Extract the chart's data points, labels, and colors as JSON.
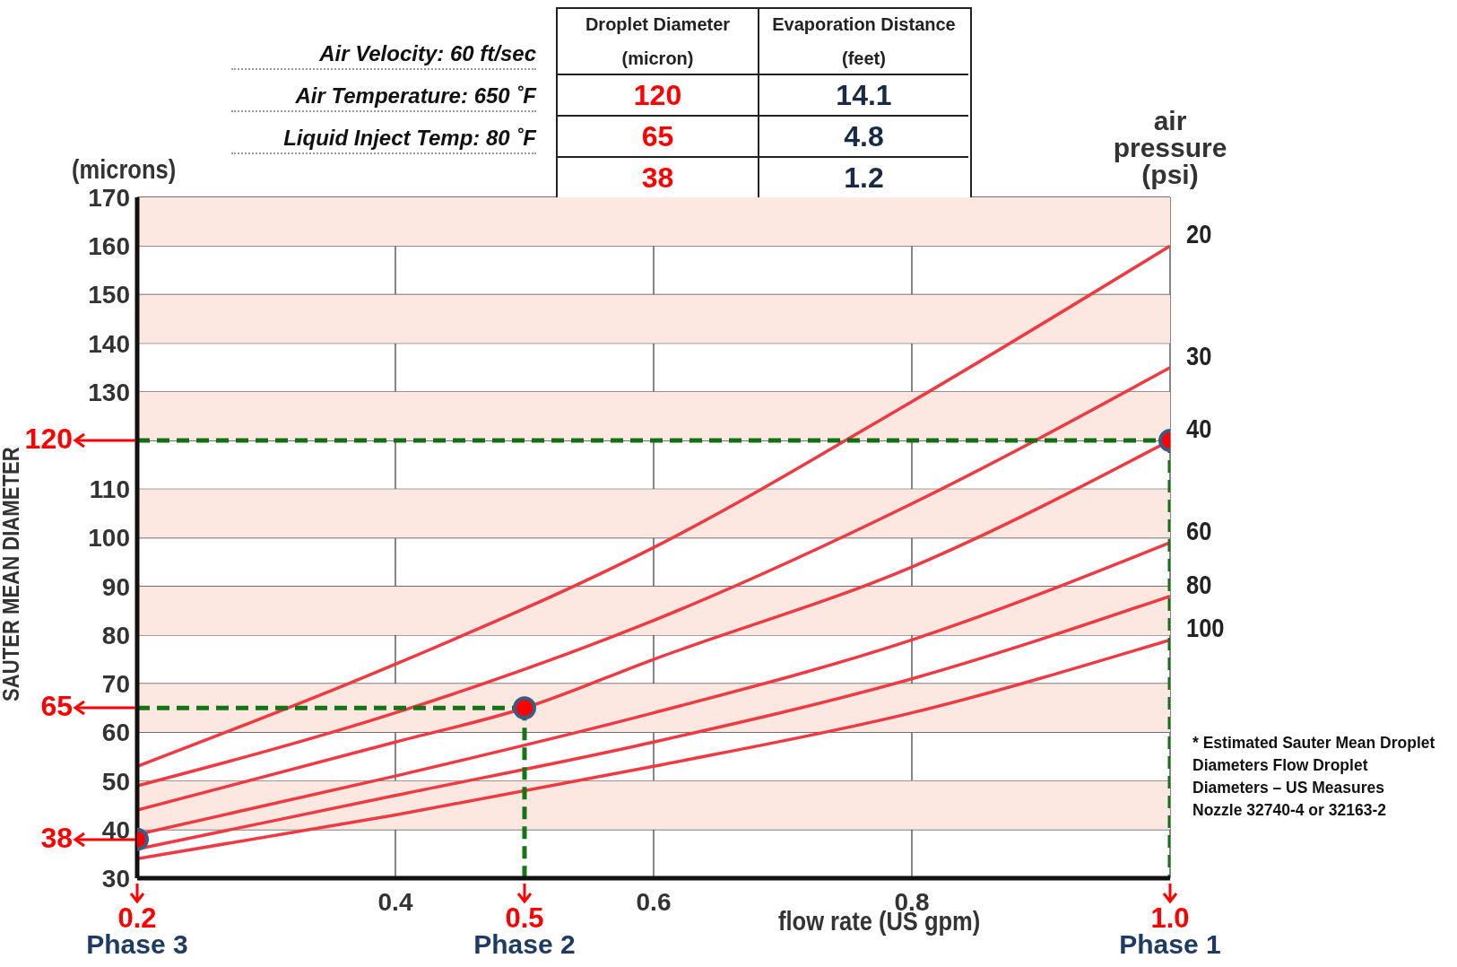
{
  "chart_data": {
    "type": "line",
    "xlabel": "flow rate (US gpm)",
    "ylabel": "SAUTER MEAN DIAMETER",
    "xlim": [
      0.2,
      1.0
    ],
    "xticks": [
      0.4,
      0.6,
      0.8
    ],
    "ylim": [
      30,
      170
    ],
    "yticks": [
      30,
      40,
      50,
      60,
      70,
      80,
      90,
      100,
      110,
      {
        "value": 120,
        "label": null
      },
      130,
      140,
      150,
      160,
      170
    ],
    "grid": true,
    "marker": "none",
    "bands": [
      {
        "axis": "y",
        "from": 40,
        "to": 50,
        "color": "#fce8e0"
      },
      {
        "axis": "y",
        "from": 60,
        "to": 70,
        "color": "#fce8e0"
      },
      {
        "axis": "y",
        "from": 80,
        "to": 90,
        "color": "#fce8e0"
      },
      {
        "axis": "y",
        "from": 100,
        "to": 110,
        "color": "#fce8e0"
      },
      {
        "axis": "y",
        "from": 120,
        "to": 130,
        "color": "#fce8e0"
      },
      {
        "axis": "y",
        "from": 140,
        "to": 150,
        "color": "#fce8e0"
      },
      {
        "axis": "y",
        "from": 160,
        "to": 170,
        "color": "#fce8e0"
      }
    ],
    "series": [
      {
        "name": "20",
        "color": "#ee3a43",
        "x": [
          0.2,
          0.4,
          0.6,
          0.8,
          1.0
        ],
        "values": [
          53,
          74,
          98,
          128,
          160
        ]
      },
      {
        "name": "30",
        "color": "#ee3a43",
        "x": [
          0.2,
          0.4,
          0.6,
          0.8,
          1.0
        ],
        "values": [
          49,
          64,
          83,
          107,
          135
        ]
      },
      {
        "name": "40",
        "color": "#ee3a43",
        "x": [
          0.2,
          0.4,
          0.5,
          0.6,
          0.8,
          1.0
        ],
        "values": [
          44,
          58,
          65,
          75,
          94,
          120
        ]
      },
      {
        "name": "60",
        "color": "#ee3a43",
        "x": [
          0.2,
          0.4,
          0.6,
          0.8,
          1.0
        ],
        "values": [
          39,
          51,
          64,
          79,
          99
        ]
      },
      {
        "name": "80",
        "color": "#ee3a43",
        "x": [
          0.2,
          0.4,
          0.6,
          0.8,
          1.0
        ],
        "values": [
          36,
          47,
          58,
          71,
          88
        ]
      },
      {
        "name": "100",
        "color": "#ee3a43",
        "x": [
          0.2,
          0.4,
          0.6,
          0.8,
          1.0
        ],
        "values": [
          34,
          43,
          53,
          64,
          79
        ]
      },
      {
        "type": "line",
        "line_style": "dashed",
        "color": "#127012",
        "x": [
          0.2,
          1.0
        ],
        "values": [
          120,
          120
        ]
      },
      {
        "type": "line",
        "line_style": "dashed",
        "color": "#137313",
        "x": [
          1.0,
          1.0
        ],
        "values": [
          120,
          30
        ]
      },
      {
        "type": "line",
        "line_style": "dashed",
        "color": "#147414",
        "x": [
          0.2,
          0.5
        ],
        "values": [
          65,
          65
        ]
      },
      {
        "type": "line",
        "line_style": "dashed",
        "color": "#157515",
        "x": [
          0.5,
          0.5
        ],
        "values": [
          65,
          30
        ]
      },
      {
        "type": "scatter",
        "marker": "circle",
        "color": "#ff0000",
        "x": [
          0.2,
          0.5,
          1.0
        ],
        "values": [
          38,
          65,
          120
        ]
      }
    ],
    "annotations": [
      "Air Velocity: 60 ft/sec",
      "Air Temperature: 650 ˚F",
      "Liquid Inject Temp: 80 ˚F",
      "Droplet Diameter (micron)",
      "Evaporation Distance (feet)",
      "120",
      "14.1",
      "65",
      "4.8",
      "38",
      "1.2",
      "(microns)",
      "air pressure (psi)",
      "* Estimated Sauter Mean Droplet Diameters Flow Droplet Diameters – US Measures Nozzle 32740-4 or 32163-2",
      {
        "text": "120",
        "x": 0.2,
        "y": 120
      },
      {
        "text": "65",
        "x": 0.2,
        "y": 65
      },
      {
        "text": "38",
        "x": 0.2,
        "y": 38
      },
      {
        "text": "0.2",
        "x": 0.2
      },
      {
        "text": "0.5",
        "x": 0.5
      },
      {
        "text": "1.0",
        "x": 1.0
      },
      "Phase 3",
      "Phase 2",
      "Phase 1"
    ]
  }
}
